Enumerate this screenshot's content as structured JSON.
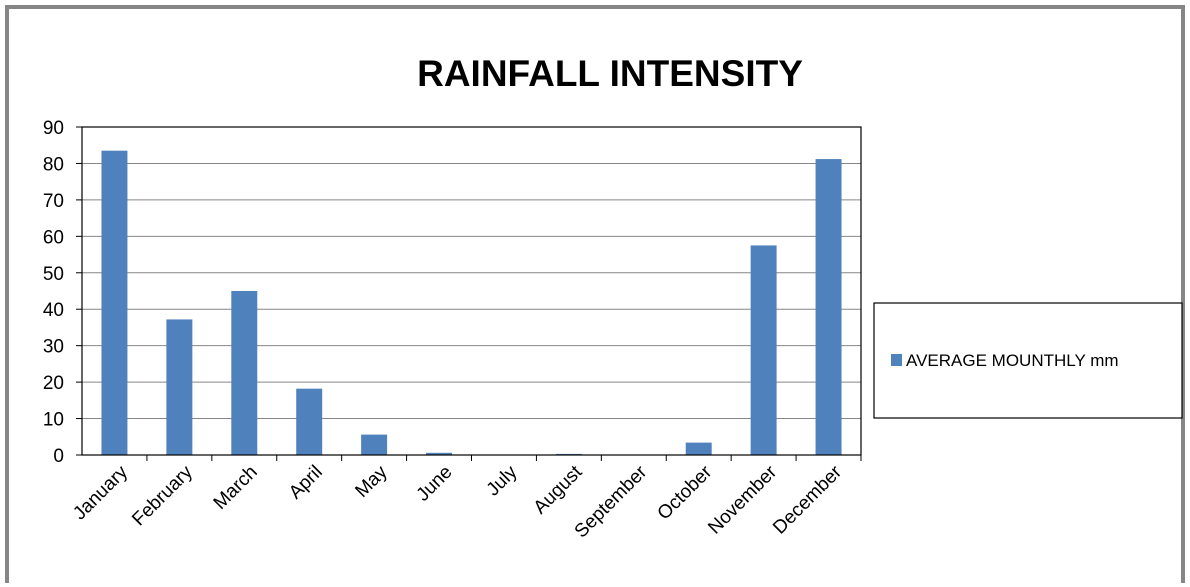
{
  "chart_data": {
    "type": "bar",
    "title": "RAINFALL INTENSITY",
    "xlabel": "",
    "ylabel": "",
    "ylim": [
      0,
      90
    ],
    "yticks": [
      "0",
      "10",
      "20",
      "30",
      "40",
      "50",
      "60",
      "70",
      "80",
      "90"
    ],
    "grid": true,
    "legend_position": "right",
    "bar_color": "#4F81BD",
    "categories": [
      "January",
      "February",
      "March",
      "April",
      "May",
      "June",
      "July",
      "August",
      "September",
      "October",
      "November",
      "December"
    ],
    "series": [
      {
        "name": "AVERAGE MOUNTHLY mm",
        "values": [
          83.5,
          37.2,
          45.0,
          18.2,
          5.6,
          0.6,
          0.1,
          0.3,
          0.1,
          3.4,
          57.5,
          81.2
        ]
      }
    ]
  }
}
